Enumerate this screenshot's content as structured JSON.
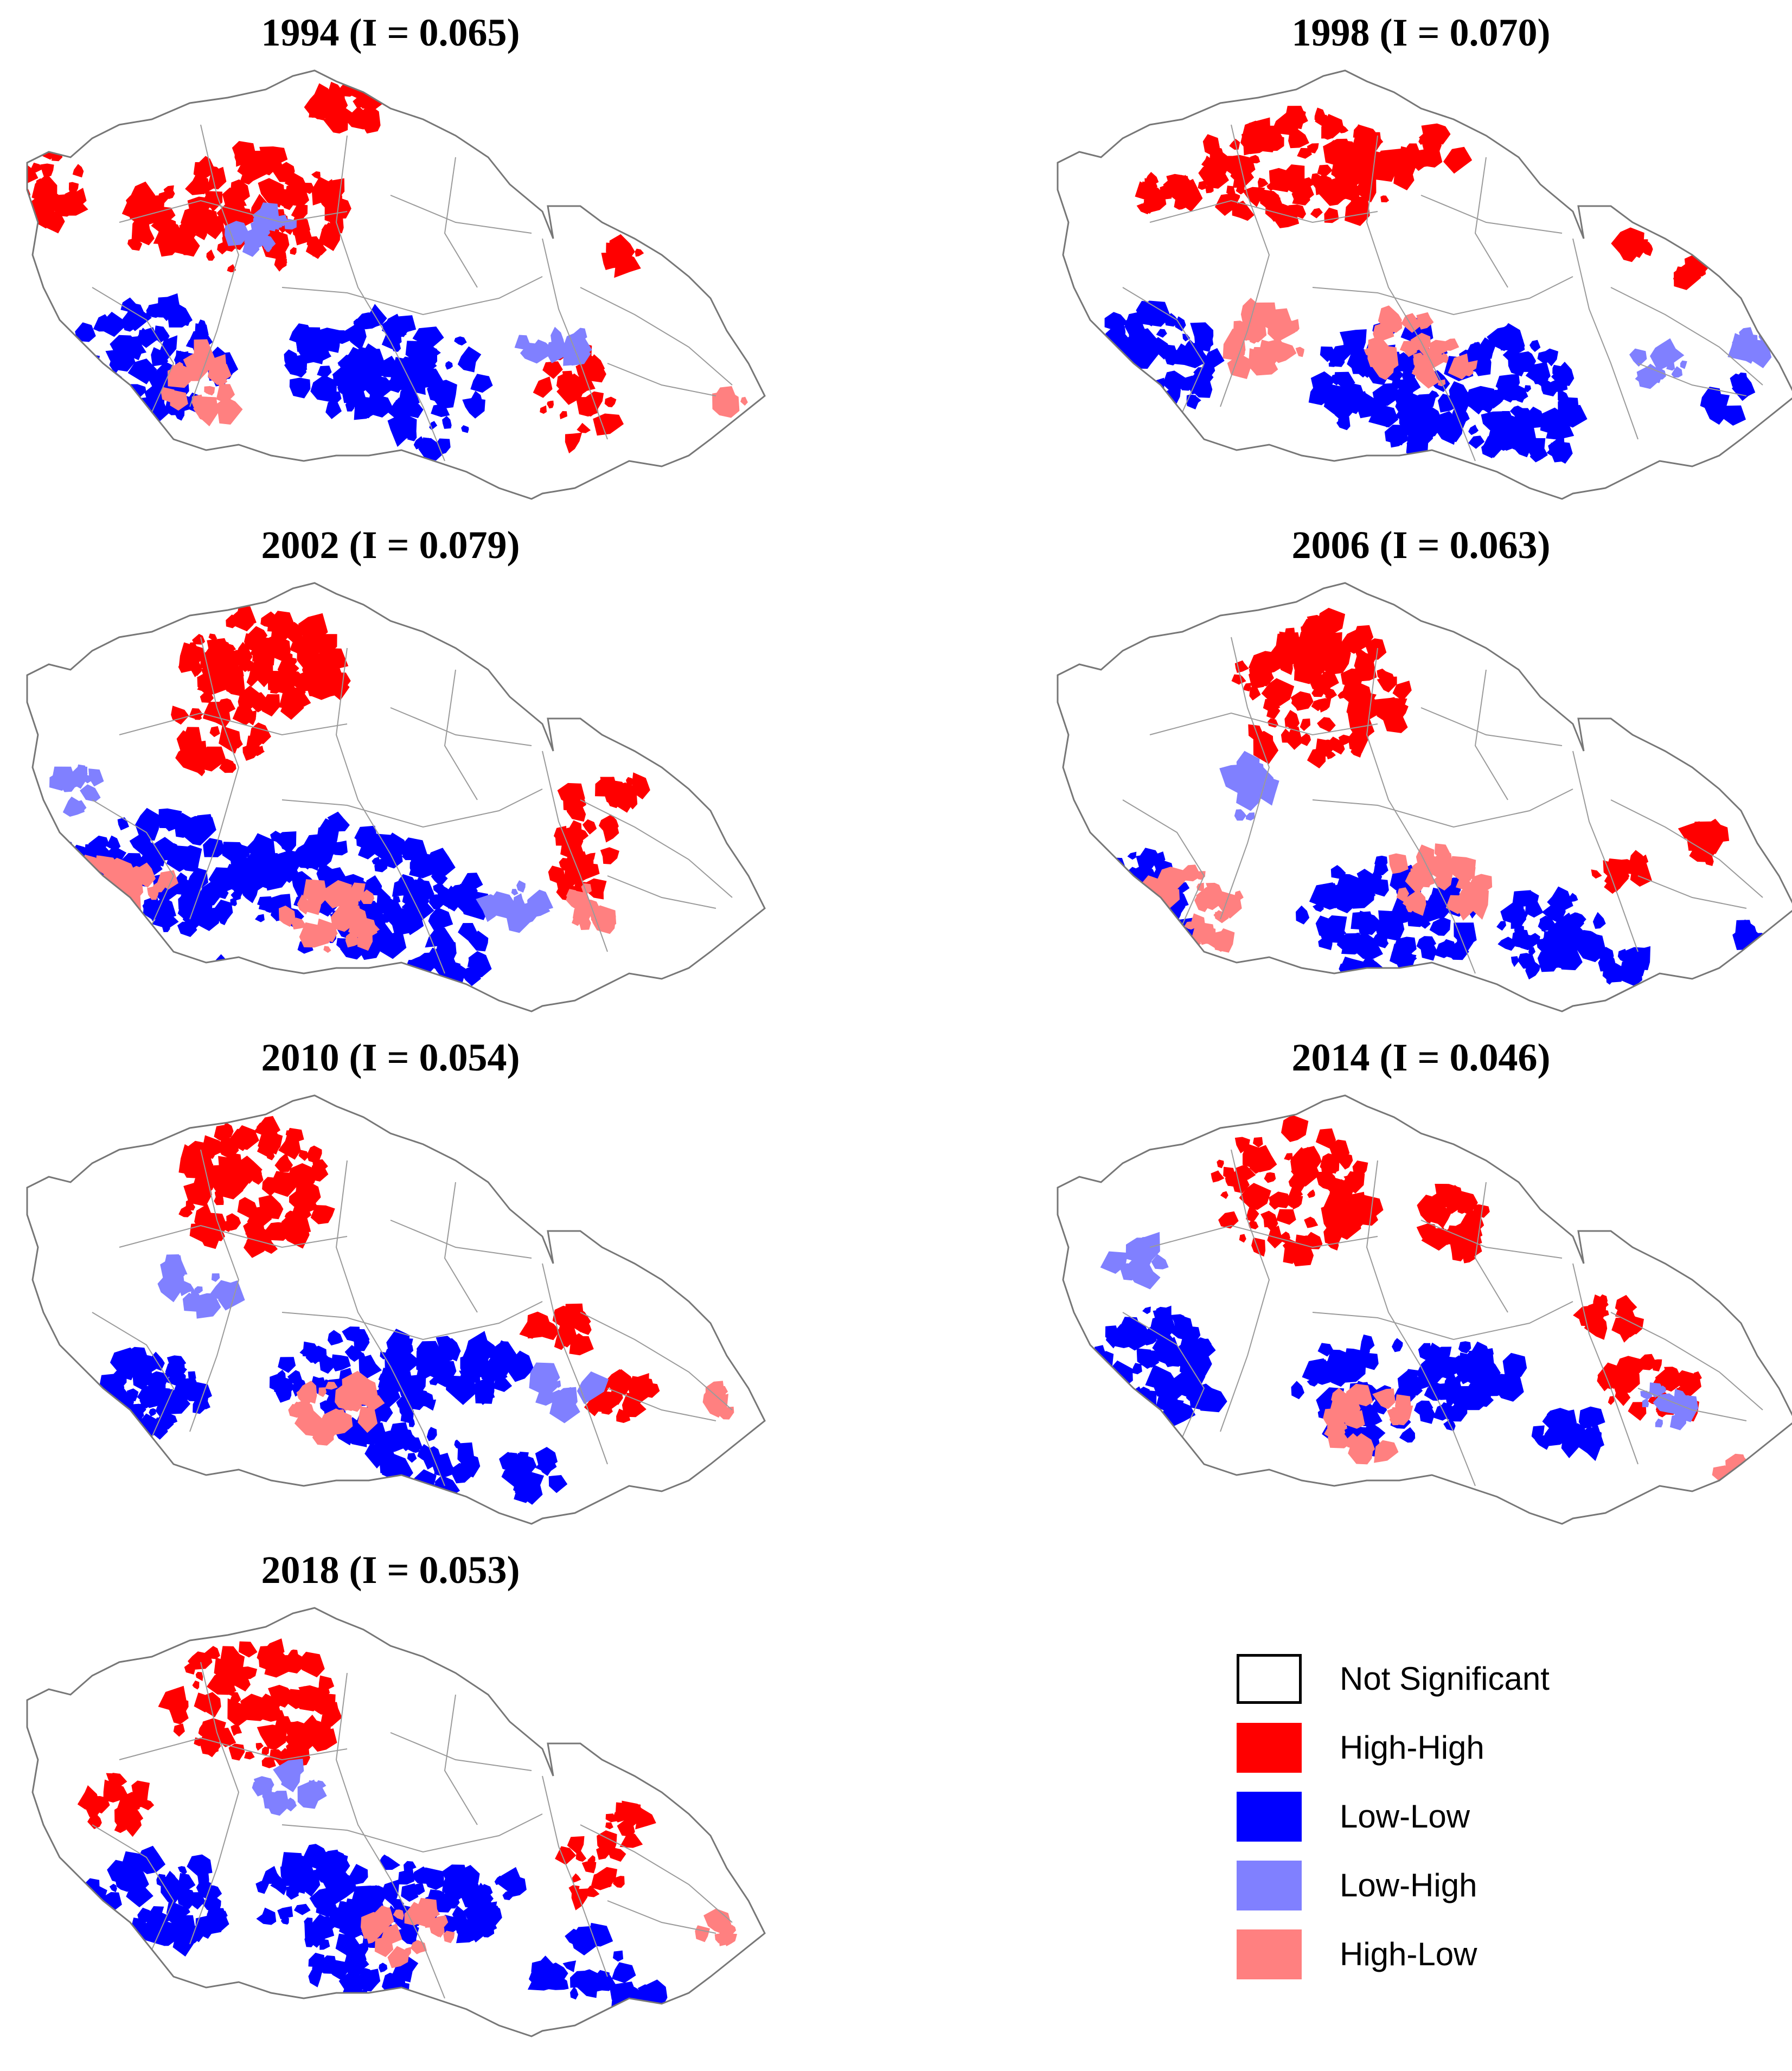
{
  "panels": [
    {
      "title": "1994 (I = 0.065)"
    },
    {
      "title": "1998 (I = 0.070)"
    },
    {
      "title": "2002 (I = 0.079)"
    },
    {
      "title": "2006 (I = 0.063)"
    },
    {
      "title": "2010 (I = 0.054)"
    },
    {
      "title": "2014 (I = 0.046)"
    },
    {
      "title": "2018 (I = 0.053)"
    }
  ],
  "legend": {
    "items": [
      {
        "label": "Not Significant",
        "color": "#ffffff"
      },
      {
        "label": "High-High",
        "color": "#ff0000"
      },
      {
        "label": "Low-Low",
        "color": "#0000ff"
      },
      {
        "label": "Low-High",
        "color": "#8080ff"
      },
      {
        "label": "High-Low",
        "color": "#ff8080"
      }
    ]
  },
  "colors": {
    "high_high": "#ff0000",
    "low_low": "#0000ff",
    "low_high": "#8080ff",
    "high_low": "#ff8080",
    "border": "#9a9a9a"
  }
}
